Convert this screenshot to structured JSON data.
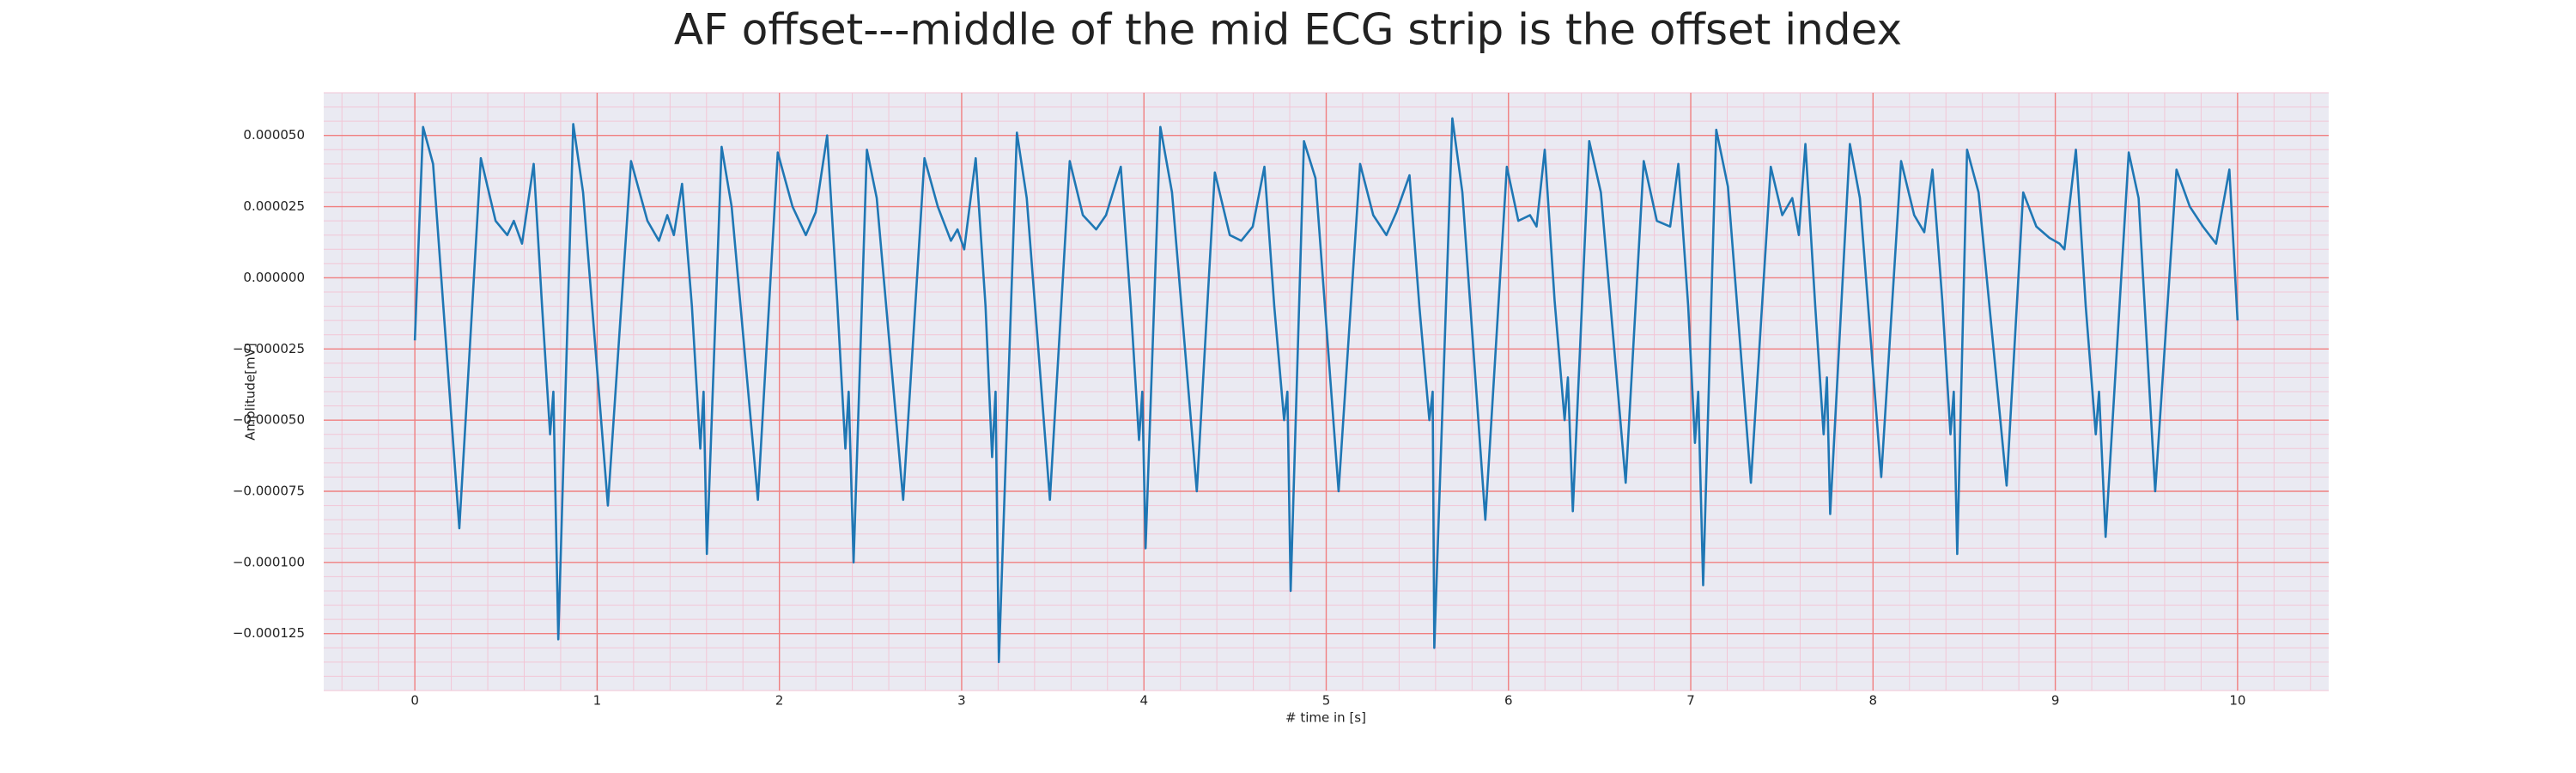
{
  "chart_data": {
    "type": "line",
    "title": "AF offset---middle of the mid ECG strip is the offset index",
    "xlabel": "# time in [s]",
    "ylabel": "Amplitude[mV]",
    "xlim": [
      -0.5,
      10.5
    ],
    "ylim": [
      -0.000145,
      6.5e-05
    ],
    "xticks": [
      0,
      1,
      2,
      3,
      4,
      5,
      6,
      7,
      8,
      9,
      10
    ],
    "yticks": [
      {
        "value": 5e-05,
        "label": "0.000050"
      },
      {
        "value": 2.5e-05,
        "label": "0.000025"
      },
      {
        "value": 0,
        "label": "0.000000"
      },
      {
        "value": -2.5e-05,
        "label": "−0.000025"
      },
      {
        "value": -5e-05,
        "label": "−0.000050"
      },
      {
        "value": -7.5e-05,
        "label": "−0.000075"
      },
      {
        "value": -0.0001,
        "label": "−0.000100"
      },
      {
        "value": -0.000125,
        "label": "−0.000125"
      }
    ],
    "grid": true,
    "minor_grid": true,
    "grid_color": "#f08080",
    "minor_grid_color": "#f2c6d6",
    "background": "#eaeaf2",
    "series": [
      {
        "color": "#1f77b4",
        "x": [
          0,
          0.045,
          0.1,
          0.244,
          0.362,
          0.443,
          0.507,
          0.543,
          0.588,
          0.652,
          0.697,
          0.742,
          0.76,
          0.787,
          0.869,
          0.923,
          1.059,
          1.186,
          1.276,
          1.339,
          1.385,
          1.421,
          1.466,
          1.52,
          1.566,
          1.584,
          1.602,
          1.683,
          1.738,
          1.882,
          1.991,
          2.072,
          2.145,
          2.199,
          2.262,
          2.317,
          2.362,
          2.38,
          2.407,
          2.48,
          2.534,
          2.679,
          2.796,
          2.869,
          2.941,
          2.977,
          3.014,
          3.077,
          3.131,
          3.167,
          3.186,
          3.204,
          3.303,
          3.357,
          3.484,
          3.593,
          3.665,
          3.738,
          3.792,
          3.873,
          3.928,
          3.973,
          3.991,
          4.009,
          4.09,
          4.154,
          4.29,
          4.389,
          4.471,
          4.534,
          4.597,
          4.661,
          4.715,
          4.769,
          4.787,
          4.805,
          4.878,
          4.941,
          5.068,
          5.186,
          5.258,
          5.33,
          5.385,
          5.457,
          5.511,
          5.566,
          5.584,
          5.593,
          5.692,
          5.747,
          5.873,
          5.991,
          6.054,
          6.118,
          6.154,
          6.199,
          6.253,
          6.308,
          6.326,
          6.353,
          6.443,
          6.507,
          6.643,
          6.742,
          6.814,
          6.887,
          6.932,
          6.986,
          7.023,
          7.041,
          7.068,
          7.14,
          7.204,
          7.33,
          7.439,
          7.502,
          7.557,
          7.593,
          7.629,
          7.683,
          7.729,
          7.747,
          7.765,
          7.873,
          7.928,
          8.045,
          8.154,
          8.226,
          8.281,
          8.326,
          8.38,
          8.425,
          8.443,
          8.462,
          8.516,
          8.579,
          8.733,
          8.824,
          8.896,
          8.968,
          9.023,
          9.05,
          9.113,
          9.167,
          9.222,
          9.24,
          9.276,
          9.403,
          9.457,
          9.548,
          9.665,
          9.738,
          9.81,
          9.882,
          9.955,
          10.0
        ],
        "values": [
          -2.2e-05,
          5.3e-05,
          4e-05,
          -8.8e-05,
          4.2e-05,
          2e-05,
          1.5e-05,
          2e-05,
          1.2e-05,
          4e-05,
          -9e-06,
          -5.5e-05,
          -4e-05,
          -0.000127,
          5.4e-05,
          3e-05,
          -8e-05,
          4.1e-05,
          2e-05,
          1.3e-05,
          2.2e-05,
          1.5e-05,
          3.3e-05,
          -1e-05,
          -6e-05,
          -4e-05,
          -9.7e-05,
          4.6e-05,
          2.5e-05,
          -7.8e-05,
          4.4e-05,
          2.5e-05,
          1.5e-05,
          2.3e-05,
          5e-05,
          -8e-06,
          -6e-05,
          -4e-05,
          -0.0001,
          4.5e-05,
          2.8e-05,
          -7.8e-05,
          4.2e-05,
          2.5e-05,
          1.3e-05,
          1.7e-05,
          1e-05,
          4.2e-05,
          -1e-05,
          -6.3e-05,
          -4e-05,
          -0.000135,
          5.1e-05,
          2.8e-05,
          -7.8e-05,
          4.1e-05,
          2.2e-05,
          1.7e-05,
          2.2e-05,
          3.9e-05,
          -1e-05,
          -5.7e-05,
          -4e-05,
          -9.5e-05,
          5.3e-05,
          3e-05,
          -7.5e-05,
          3.7e-05,
          1.5e-05,
          1.3e-05,
          1.8e-05,
          3.9e-05,
          -1e-05,
          -5e-05,
          -4e-05,
          -0.00011,
          4.8e-05,
          3.5e-05,
          -7.5e-05,
          4e-05,
          2.2e-05,
          1.5e-05,
          2.3e-05,
          3.6e-05,
          -1e-05,
          -5e-05,
          -4e-05,
          -0.00013,
          5.6e-05,
          3e-05,
          -8.5e-05,
          3.9e-05,
          2e-05,
          2.2e-05,
          1.8e-05,
          4.5e-05,
          -8e-06,
          -5e-05,
          -3.5e-05,
          -8.2e-05,
          4.8e-05,
          3e-05,
          -7.2e-05,
          4.1e-05,
          2e-05,
          1.8e-05,
          4e-05,
          -1e-05,
          -5.8e-05,
          -4e-05,
          -0.000108,
          5.2e-05,
          3.2e-05,
          -7.2e-05,
          3.9e-05,
          2.2e-05,
          2.8e-05,
          1.5e-05,
          4.7e-05,
          -1e-05,
          -5.5e-05,
          -3.5e-05,
          -8.3e-05,
          4.7e-05,
          2.8e-05,
          -7e-05,
          4.1e-05,
          2.2e-05,
          1.6e-05,
          3.8e-05,
          -8e-06,
          -5.5e-05,
          -4e-05,
          -9.7e-05,
          4.5e-05,
          3e-05,
          -7.3e-05,
          3e-05,
          1.8e-05,
          1.4e-05,
          1.2e-05,
          1e-05,
          4.5e-05,
          -1e-05,
          -5.5e-05,
          -4e-05,
          -9.1e-05,
          4.4e-05,
          2.8e-05,
          -7.5e-05,
          3.8e-05,
          2.5e-05,
          1.8e-05,
          1.2e-05,
          3.8e-05,
          -1.5e-05
        ]
      }
    ]
  }
}
